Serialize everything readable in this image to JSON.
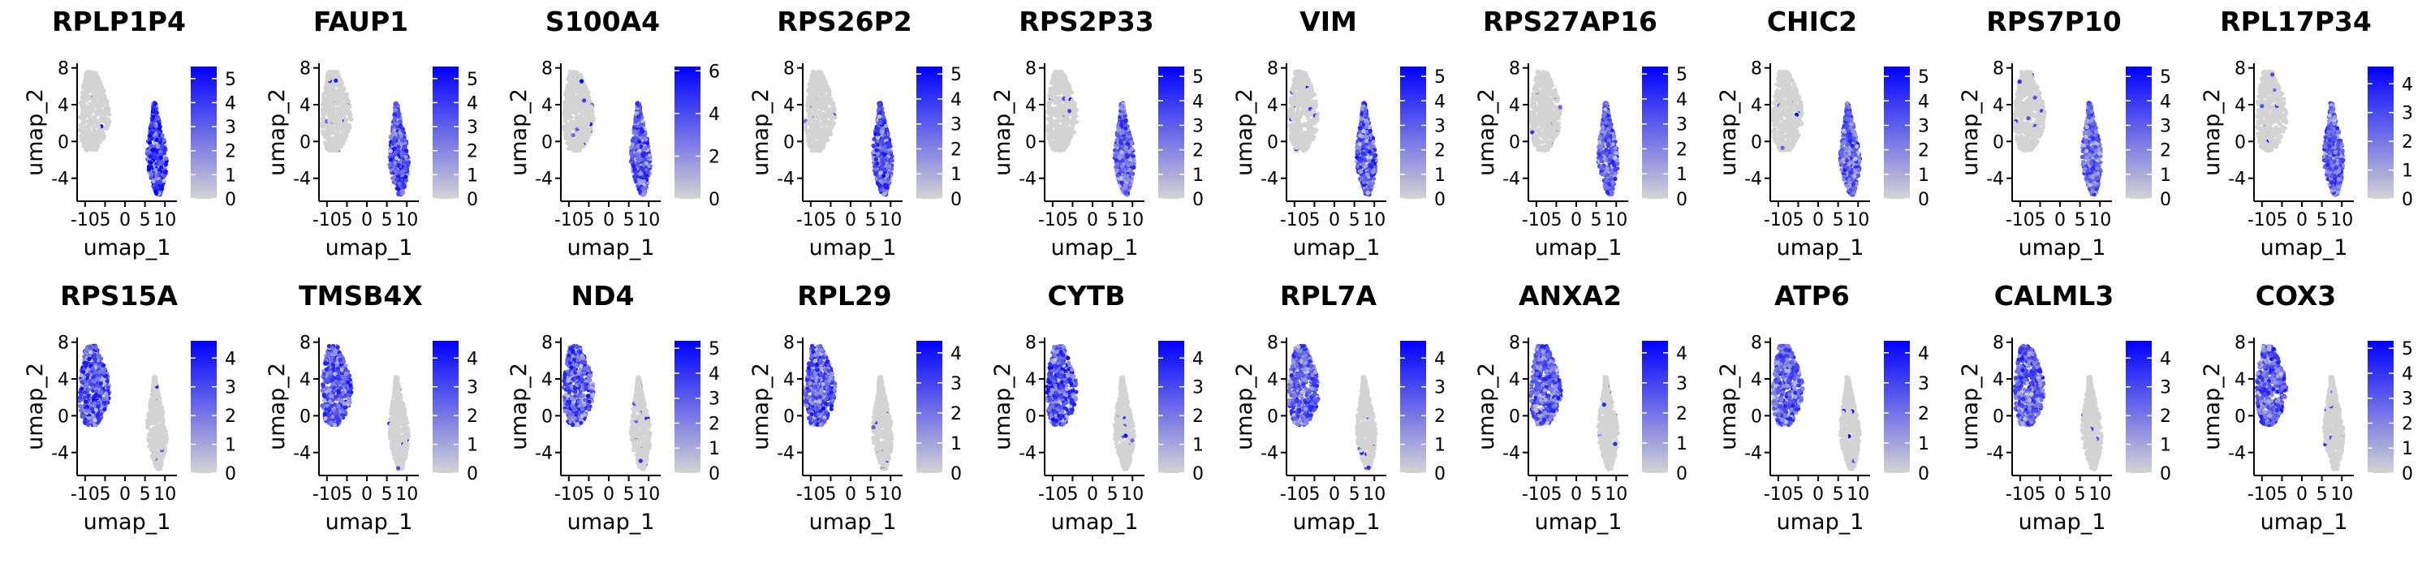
{
  "colors": {
    "low": "#d3d3d3",
    "high": "#0000ff",
    "axis": "#000000"
  },
  "chart_data": [
    {
      "type": "scatter",
      "title": "RPLP1P4",
      "xlabel": "umap_1",
      "ylabel": "umap_2",
      "x_ticks": [
        "-10",
        "5",
        "0",
        "5",
        "10"
      ],
      "y_ticks": [
        "8",
        "4",
        "0",
        "-4"
      ],
      "xlim": [
        -12,
        13
      ],
      "ylim": [
        -6.5,
        8.5
      ],
      "colorbar_ticks": [
        0,
        1,
        2,
        3,
        4,
        5
      ],
      "color_max": 5.5,
      "expressing_cluster": "right",
      "intensity": 0.85
    },
    {
      "type": "scatter",
      "title": "FAUP1",
      "xlabel": "umap_1",
      "ylabel": "umap_2",
      "x_ticks": [
        "-10",
        "5",
        "0",
        "5",
        "10"
      ],
      "y_ticks": [
        "8",
        "4",
        "0",
        "-4"
      ],
      "xlim": [
        -12,
        13
      ],
      "ylim": [
        -6.5,
        8.5
      ],
      "colorbar_ticks": [
        0,
        1,
        2,
        3,
        4,
        5
      ],
      "color_max": 5.5,
      "expressing_cluster": "right",
      "intensity": 0.7
    },
    {
      "type": "scatter",
      "title": "S100A4",
      "xlabel": "umap_1",
      "ylabel": "umap_2",
      "x_ticks": [
        "-10",
        "5",
        "0",
        "5",
        "10"
      ],
      "y_ticks": [
        "8",
        "4",
        "0",
        "-4"
      ],
      "xlim": [
        -12,
        13
      ],
      "ylim": [
        -6.5,
        8.5
      ],
      "colorbar_ticks": [
        0,
        2,
        4,
        6
      ],
      "color_max": 6.2,
      "expressing_cluster": "right",
      "intensity": 0.65
    },
    {
      "type": "scatter",
      "title": "RPS26P2",
      "xlabel": "umap_1",
      "ylabel": "umap_2",
      "x_ticks": [
        "-10",
        "5",
        "0",
        "5",
        "10"
      ],
      "y_ticks": [
        "8",
        "4",
        "0",
        "-4"
      ],
      "xlim": [
        -12,
        13
      ],
      "ylim": [
        -6.5,
        8.5
      ],
      "colorbar_ticks": [
        0,
        1,
        2,
        3,
        4,
        5
      ],
      "color_max": 5.3,
      "expressing_cluster": "right",
      "intensity": 0.7
    },
    {
      "type": "scatter",
      "title": "RPS2P33",
      "xlabel": "umap_1",
      "ylabel": "umap_2",
      "x_ticks": [
        "-10",
        "5",
        "0",
        "5",
        "10"
      ],
      "y_ticks": [
        "8",
        "4",
        "0",
        "-4"
      ],
      "xlim": [
        -12,
        13
      ],
      "ylim": [
        -6.5,
        8.5
      ],
      "colorbar_ticks": [
        0,
        1,
        2,
        3,
        4,
        5
      ],
      "color_max": 5.4,
      "expressing_cluster": "right",
      "intensity": 0.6
    },
    {
      "type": "scatter",
      "title": "VIM",
      "xlabel": "umap_1",
      "ylabel": "umap_2",
      "x_ticks": [
        "-10",
        "5",
        "0",
        "5",
        "10"
      ],
      "y_ticks": [
        "8",
        "4",
        "0",
        "-4"
      ],
      "xlim": [
        -12,
        13
      ],
      "ylim": [
        -6.5,
        8.5
      ],
      "colorbar_ticks": [
        0,
        1,
        2,
        3,
        4,
        5
      ],
      "color_max": 5.4,
      "expressing_cluster": "right",
      "intensity": 0.7
    },
    {
      "type": "scatter",
      "title": "RPS27AP16",
      "xlabel": "umap_1",
      "ylabel": "umap_2",
      "x_ticks": [
        "-10",
        "5",
        "0",
        "5",
        "10"
      ],
      "y_ticks": [
        "8",
        "4",
        "0",
        "-4"
      ],
      "xlim": [
        -12,
        13
      ],
      "ylim": [
        -6.5,
        8.5
      ],
      "colorbar_ticks": [
        0,
        1,
        2,
        3,
        4,
        5
      ],
      "color_max": 5.3,
      "expressing_cluster": "right",
      "intensity": 0.6
    },
    {
      "type": "scatter",
      "title": "CHIC2",
      "xlabel": "umap_1",
      "ylabel": "umap_2",
      "x_ticks": [
        "-10",
        "5",
        "0",
        "5",
        "10"
      ],
      "y_ticks": [
        "8",
        "4",
        "0",
        "-4"
      ],
      "xlim": [
        -12,
        13
      ],
      "ylim": [
        -6.5,
        8.5
      ],
      "colorbar_ticks": [
        0,
        1,
        2,
        3,
        4,
        5
      ],
      "color_max": 5.4,
      "expressing_cluster": "right",
      "intensity": 0.6
    },
    {
      "type": "scatter",
      "title": "RPS7P10",
      "xlabel": "umap_1",
      "ylabel": "umap_2",
      "x_ticks": [
        "-10",
        "5",
        "0",
        "5",
        "10"
      ],
      "y_ticks": [
        "8",
        "4",
        "0",
        "-4"
      ],
      "xlim": [
        -12,
        13
      ],
      "ylim": [
        -6.5,
        8.5
      ],
      "colorbar_ticks": [
        0,
        1,
        2,
        3,
        4,
        5
      ],
      "color_max": 5.4,
      "expressing_cluster": "right",
      "intensity": 0.55
    },
    {
      "type": "scatter",
      "title": "RPL17P34",
      "xlabel": "umap_1",
      "ylabel": "umap_2",
      "x_ticks": [
        "-10",
        "5",
        "0",
        "5",
        "10"
      ],
      "y_ticks": [
        "8",
        "4",
        "0",
        "-4"
      ],
      "xlim": [
        -12,
        13
      ],
      "ylim": [
        -6.5,
        8.5
      ],
      "colorbar_ticks": [
        0,
        1,
        2,
        3,
        4
      ],
      "color_max": 4.6,
      "expressing_cluster": "right",
      "intensity": 0.6
    },
    {
      "type": "scatter",
      "title": "RPS15A",
      "xlabel": "umap_1",
      "ylabel": "umap_2",
      "x_ticks": [
        "-10",
        "5",
        "0",
        "5",
        "10"
      ],
      "y_ticks": [
        "8",
        "4",
        "0",
        "-4"
      ],
      "xlim": [
        -12,
        13
      ],
      "ylim": [
        -6.5,
        8.5
      ],
      "colorbar_ticks": [
        0,
        1,
        2,
        3,
        4
      ],
      "color_max": 4.6,
      "expressing_cluster": "left",
      "intensity": 0.7
    },
    {
      "type": "scatter",
      "title": "TMSB4X",
      "xlabel": "umap_1",
      "ylabel": "umap_2",
      "x_ticks": [
        "-10",
        "5",
        "0",
        "5",
        "10"
      ],
      "y_ticks": [
        "8",
        "4",
        "0",
        "-4"
      ],
      "xlim": [
        -12,
        13
      ],
      "ylim": [
        -6.5,
        8.5
      ],
      "colorbar_ticks": [
        0,
        1,
        2,
        3,
        4
      ],
      "color_max": 4.6,
      "expressing_cluster": "left",
      "intensity": 0.65
    },
    {
      "type": "scatter",
      "title": "ND4",
      "xlabel": "umap_1",
      "ylabel": "umap_2",
      "x_ticks": [
        "-10",
        "5",
        "0",
        "5",
        "10"
      ],
      "y_ticks": [
        "8",
        "4",
        "0",
        "-4"
      ],
      "xlim": [
        -12,
        13
      ],
      "ylim": [
        -6.5,
        8.5
      ],
      "colorbar_ticks": [
        0,
        1,
        2,
        3,
        4,
        5
      ],
      "color_max": 5.3,
      "expressing_cluster": "left",
      "intensity": 0.7
    },
    {
      "type": "scatter",
      "title": "RPL29",
      "xlabel": "umap_1",
      "ylabel": "umap_2",
      "x_ticks": [
        "-10",
        "5",
        "0",
        "5",
        "10"
      ],
      "y_ticks": [
        "8",
        "4",
        "0",
        "-4"
      ],
      "xlim": [
        -12,
        13
      ],
      "ylim": [
        -6.5,
        8.5
      ],
      "colorbar_ticks": [
        0,
        1,
        2,
        3,
        4
      ],
      "color_max": 4.4,
      "expressing_cluster": "left",
      "intensity": 0.7
    },
    {
      "type": "scatter",
      "title": "CYTB",
      "xlabel": "umap_1",
      "ylabel": "umap_2",
      "x_ticks": [
        "-10",
        "5",
        "0",
        "5",
        "10"
      ],
      "y_ticks": [
        "8",
        "4",
        "0",
        "-4"
      ],
      "xlim": [
        -12,
        13
      ],
      "ylim": [
        -6.5,
        8.5
      ],
      "colorbar_ticks": [
        0,
        1,
        2,
        3,
        4
      ],
      "color_max": 4.6,
      "expressing_cluster": "left",
      "intensity": 0.7
    },
    {
      "type": "scatter",
      "title": "RPL7A",
      "xlabel": "umap_1",
      "ylabel": "umap_2",
      "x_ticks": [
        "-10",
        "5",
        "0",
        "5",
        "10"
      ],
      "y_ticks": [
        "8",
        "4",
        "0",
        "-4"
      ],
      "xlim": [
        -12,
        13
      ],
      "ylim": [
        -6.5,
        8.5
      ],
      "colorbar_ticks": [
        0,
        1,
        2,
        3,
        4
      ],
      "color_max": 4.6,
      "expressing_cluster": "left",
      "intensity": 0.6
    },
    {
      "type": "scatter",
      "title": "ANXA2",
      "xlabel": "umap_1",
      "ylabel": "umap_2",
      "x_ticks": [
        "-10",
        "5",
        "0",
        "5",
        "10"
      ],
      "y_ticks": [
        "8",
        "4",
        "0",
        "-4"
      ],
      "xlim": [
        -12,
        13
      ],
      "ylim": [
        -6.5,
        8.5
      ],
      "colorbar_ticks": [
        0,
        1,
        2,
        3,
        4
      ],
      "color_max": 4.4,
      "expressing_cluster": "left",
      "intensity": 0.65
    },
    {
      "type": "scatter",
      "title": "ATP6",
      "xlabel": "umap_1",
      "ylabel": "umap_2",
      "x_ticks": [
        "-10",
        "5",
        "0",
        "5",
        "10"
      ],
      "y_ticks": [
        "8",
        "4",
        "0",
        "-4"
      ],
      "xlim": [
        -12,
        13
      ],
      "ylim": [
        -6.5,
        8.5
      ],
      "colorbar_ticks": [
        0,
        1,
        2,
        3,
        4
      ],
      "color_max": 4.4,
      "expressing_cluster": "left",
      "intensity": 0.6
    },
    {
      "type": "scatter",
      "title": "CALML3",
      "xlabel": "umap_1",
      "ylabel": "umap_2",
      "x_ticks": [
        "-10",
        "5",
        "0",
        "5",
        "10"
      ],
      "y_ticks": [
        "8",
        "4",
        "0",
        "-4"
      ],
      "xlim": [
        -12,
        13
      ],
      "ylim": [
        -6.5,
        8.5
      ],
      "colorbar_ticks": [
        0,
        1,
        2,
        3,
        4
      ],
      "color_max": 4.6,
      "expressing_cluster": "left",
      "intensity": 0.65
    },
    {
      "type": "scatter",
      "title": "COX3",
      "xlabel": "umap_1",
      "ylabel": "umap_2",
      "x_ticks": [
        "-10",
        "5",
        "0",
        "5",
        "10"
      ],
      "y_ticks": [
        "8",
        "4",
        "0",
        "-4"
      ],
      "xlim": [
        -12,
        13
      ],
      "ylim": [
        -6.5,
        8.5
      ],
      "colorbar_ticks": [
        0,
        1,
        2,
        3,
        4,
        5
      ],
      "color_max": 5.3,
      "expressing_cluster": "left",
      "intensity": 0.65
    }
  ]
}
